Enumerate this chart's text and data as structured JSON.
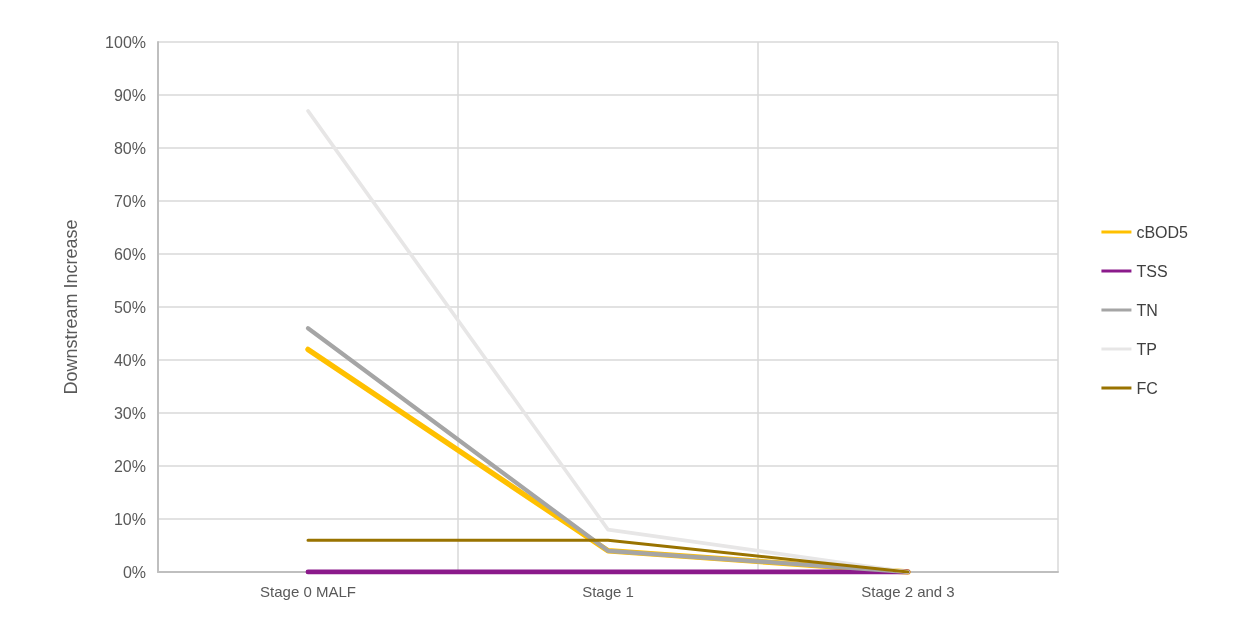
{
  "chart_data": {
    "type": "line",
    "ylabel": "Downstream Increase",
    "categories": [
      "Stage 0 MALF",
      "Stage 1",
      "Stage 2 and 3"
    ],
    "series": [
      {
        "name": "cBOD5",
        "color": "#ffc000",
        "values": [
          42,
          4,
          0
        ]
      },
      {
        "name": "TSS",
        "color": "#8b1a8b",
        "values": [
          0,
          0,
          0
        ]
      },
      {
        "name": "TN",
        "color": "#a5a5a5",
        "values": [
          46,
          4,
          0
        ]
      },
      {
        "name": "TP",
        "color": "#e7e6e6",
        "values": [
          87,
          8,
          0
        ]
      },
      {
        "name": "FC",
        "color": "#997300",
        "values": [
          6,
          6,
          0
        ]
      }
    ],
    "ylim": [
      0,
      100
    ],
    "yticks": [
      {
        "value": 0,
        "label": "0%"
      },
      {
        "value": 10,
        "label": "10%"
      },
      {
        "value": 20,
        "label": "20%"
      },
      {
        "value": 30,
        "label": "30%"
      },
      {
        "value": 40,
        "label": "40%"
      },
      {
        "value": 50,
        "label": "50%"
      },
      {
        "value": 60,
        "label": "60%"
      },
      {
        "value": 70,
        "label": "70%"
      },
      {
        "value": 80,
        "label": "80%"
      },
      {
        "value": 90,
        "label": "90%"
      },
      {
        "value": 100,
        "label": "100%"
      }
    ],
    "grid": true,
    "legend": "right",
    "marker": "none",
    "line_style": "solid"
  }
}
